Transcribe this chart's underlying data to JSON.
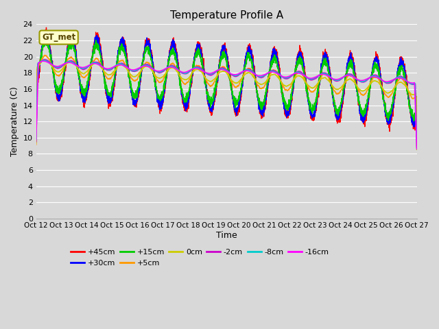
{
  "title": "Temperature Profile A",
  "xlabel": "Time",
  "ylabel": "Temperature (C)",
  "xlim": [
    0,
    360
  ],
  "ylim": [
    0,
    24
  ],
  "yticks": [
    0,
    2,
    4,
    6,
    8,
    10,
    12,
    14,
    16,
    18,
    20,
    22,
    24
  ],
  "xtick_labels": [
    "Oct 12",
    "Oct 13",
    "Oct 14",
    "Oct 15",
    "Oct 16",
    "Oct 17",
    "Oct 18",
    "Oct 19",
    "Oct 20",
    "Oct 21",
    "Oct 22",
    "Oct 23",
    "Oct 24",
    "Oct 25",
    "Oct 26",
    "Oct 27"
  ],
  "n_points": 3600,
  "series": [
    {
      "label": "+45cm",
      "color": "#ff0000"
    },
    {
      "label": "+30cm",
      "color": "#0000ff"
    },
    {
      "label": "+15cm",
      "color": "#00cc00"
    },
    {
      "label": "+5cm",
      "color": "#ff9900"
    },
    {
      "label": "0cm",
      "color": "#cccc00"
    },
    {
      "label": "-2cm",
      "color": "#cc00cc"
    },
    {
      "label": "-8cm",
      "color": "#00cccc"
    },
    {
      "label": "-16cm",
      "color": "#ff00ff"
    }
  ],
  "bg_color": "#d8d8d8",
  "plot_bg_color": "#d8d8d8",
  "annotation_text": "GT_met",
  "annotation_bg": "#ffffcc",
  "annotation_edge": "#999900"
}
